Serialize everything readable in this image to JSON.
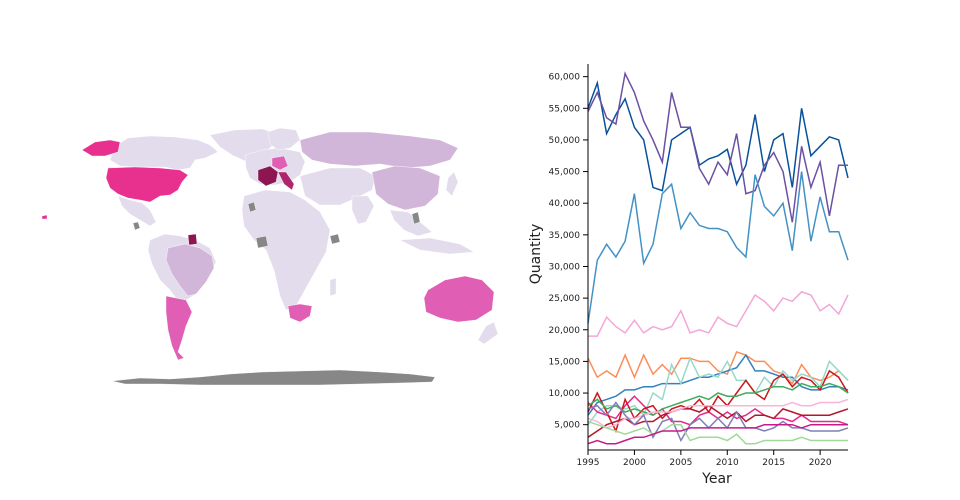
{
  "colors": {
    "map_light": "#e3dcec",
    "map_mid": "#d2b6da",
    "map_pink": "#e05fb4",
    "map_hot": "#e8308f",
    "map_dark": "#b0246c",
    "map_deep": "#8c1552",
    "map_nodata": "#878787"
  },
  "chart_data": {
    "type": "line",
    "title": "",
    "xlabel": "Year",
    "ylabel": "Quantity",
    "xlim": [
      1995,
      2023
    ],
    "ylim": [
      1000,
      62000
    ],
    "x_ticks": [
      1995,
      2000,
      2005,
      2010,
      2015,
      2020
    ],
    "x_tick_labels": [
      "1995",
      "2000",
      "2005",
      "2010",
      "2015",
      "2020"
    ],
    "y_ticks": [
      5000,
      10000,
      15000,
      20000,
      25000,
      30000,
      35000,
      40000,
      45000,
      50000,
      55000,
      60000
    ],
    "y_tick_labels": [
      "5,000",
      "10,000",
      "15,000",
      "20,000",
      "25,000",
      "30,000",
      "35,000",
      "40,000",
      "45,000",
      "50,000",
      "55,000",
      "60,000"
    ],
    "x": [
      1995,
      1996,
      1997,
      1998,
      1999,
      2000,
      2001,
      2002,
      2003,
      2004,
      2005,
      2006,
      2007,
      2008,
      2009,
      2010,
      2011,
      2012,
      2013,
      2014,
      2015,
      2016,
      2017,
      2018,
      2019,
      2020,
      2021,
      2022,
      2023
    ],
    "series": [
      {
        "color": "#08519c",
        "values": [
          55000,
          59000,
          51000,
          54000,
          56500,
          52000,
          50000,
          42500,
          42000,
          50000,
          51000,
          52000,
          46000,
          47000,
          47500,
          48500,
          43000,
          46000,
          54000,
          45000,
          50000,
          51000,
          42500,
          55000,
          47500,
          49000,
          50500,
          50000,
          44000
        ]
      },
      {
        "color": "#6a51a3",
        "values": [
          54500,
          57500,
          53500,
          52500,
          60500,
          57500,
          53000,
          50000,
          46500,
          57500,
          52000,
          52000,
          45500,
          43000,
          46500,
          44500,
          51000,
          41500,
          42000,
          46000,
          48000,
          45000,
          37000,
          49000,
          42500,
          46500,
          38000,
          46000,
          46000
        ]
      },
      {
        "color": "#4292c6",
        "values": [
          21000,
          31000,
          33500,
          31500,
          34000,
          41500,
          30500,
          33500,
          41500,
          43000,
          36000,
          38500,
          36500,
          36000,
          36000,
          35500,
          33000,
          31500,
          44500,
          39500,
          38000,
          40000,
          32500,
          45000,
          34000,
          41000,
          35500,
          35500,
          31000
        ]
      },
      {
        "color": "#f4a6d7",
        "values": [
          19000,
          19000,
          22000,
          20500,
          19500,
          21500,
          19500,
          20500,
          20000,
          20500,
          23000,
          19500,
          20000,
          19500,
          22000,
          21000,
          20500,
          23000,
          25500,
          24500,
          23000,
          25000,
          24500,
          26000,
          25500,
          23000,
          24000,
          22500,
          25500
        ]
      },
      {
        "color": "#fc8d59",
        "values": [
          15500,
          12500,
          13500,
          12500,
          16000,
          12500,
          16000,
          13000,
          14500,
          13000,
          15500,
          15500,
          15000,
          15000,
          13500,
          13000,
          16500,
          16000,
          15000,
          15000,
          13500,
          13000,
          11500,
          14500,
          12500,
          12000,
          12500,
          13500,
          12000
        ]
      },
      {
        "color": "#3182bd",
        "values": [
          6500,
          8500,
          9000,
          9500,
          10500,
          10500,
          11000,
          11000,
          11500,
          11500,
          11500,
          12000,
          12500,
          12500,
          13000,
          13500,
          14000,
          16000,
          13500,
          13500,
          13000,
          12500,
          12500,
          11000,
          10500,
          10500,
          11000,
          11000,
          10500
        ]
      },
      {
        "color": "#99d8c9",
        "values": [
          5000,
          7000,
          8000,
          8000,
          7500,
          8000,
          6500,
          10000,
          9000,
          14500,
          11500,
          15500,
          12500,
          13000,
          12500,
          15000,
          12000,
          12000,
          10000,
          12500,
          11000,
          13500,
          12000,
          13000,
          12500,
          11000,
          15000,
          13500,
          12000
        ]
      },
      {
        "color": "#e7298a",
        "values": [
          8500,
          7000,
          6500,
          6000,
          8000,
          9500,
          8000,
          6500,
          7500,
          5500,
          5500,
          5000,
          6500,
          7000,
          6000,
          7000,
          6000,
          6500,
          7500,
          6500,
          6000,
          6000,
          5500,
          6500,
          5500,
          5500,
          5500,
          5500,
          5000
        ]
      },
      {
        "color": "#cb181d",
        "values": [
          7000,
          10000,
          7000,
          4000,
          9000,
          6000,
          7500,
          8000,
          6000,
          7500,
          8000,
          7500,
          9000,
          7000,
          9500,
          8000,
          10000,
          12000,
          10000,
          9000,
          12000,
          13000,
          11000,
          12500,
          12000,
          10500,
          13500,
          12500,
          10000
        ]
      },
      {
        "color": "#41ab5d",
        "values": [
          8000,
          9000,
          7500,
          8000,
          7000,
          7500,
          7000,
          6500,
          7500,
          8000,
          8500,
          9000,
          9500,
          9000,
          10000,
          9500,
          9500,
          10000,
          10000,
          10500,
          11000,
          11000,
          10500,
          11500,
          11000,
          11000,
          11500,
          11000,
          10000
        ]
      },
      {
        "color": "#b2182b",
        "values": [
          3000,
          4000,
          5000,
          5500,
          6000,
          5000,
          5500,
          5500,
          6500,
          7000,
          7500,
          7500,
          7000,
          8000,
          7000,
          6000,
          7000,
          5500,
          6500,
          6500,
          6000,
          7500,
          7000,
          6500,
          6500,
          6500,
          6500,
          7000,
          7500
        ]
      },
      {
        "color": "#fbb4d9",
        "values": [
          6000,
          5500,
          4500,
          5000,
          6000,
          6000,
          6500,
          7000,
          7000,
          7000,
          7500,
          8000,
          8000,
          8000,
          8000,
          8000,
          8000,
          8000,
          8000,
          8000,
          8000,
          8000,
          8500,
          8000,
          8000,
          8500,
          8500,
          8500,
          9000
        ]
      },
      {
        "color": "#807dba",
        "values": [
          7500,
          8000,
          6500,
          8500,
          6500,
          5000,
          6500,
          3000,
          5500,
          6000,
          2500,
          5000,
          6000,
          4500,
          6000,
          4500,
          7000,
          4500,
          4500,
          4000,
          4500,
          5500,
          4500,
          4500,
          4000,
          4000,
          4000,
          4000,
          4500
        ]
      },
      {
        "color": "#a1d99b",
        "values": [
          5500,
          5000,
          4500,
          4000,
          3500,
          4000,
          4500,
          3500,
          4000,
          5000,
          5000,
          2500,
          3000,
          3000,
          3000,
          2500,
          3500,
          2000,
          2000,
          2500,
          2500,
          2500,
          2500,
          3000,
          2500,
          2500,
          2500,
          2500,
          2500
        ]
      },
      {
        "color": "#c51b8a",
        "values": [
          2000,
          2500,
          2000,
          2000,
          2500,
          3000,
          3000,
          3500,
          4000,
          4000,
          4000,
          4500,
          4500,
          4500,
          4500,
          4500,
          4500,
          4500,
          4500,
          5000,
          5000,
          5000,
          5000,
          4500,
          5000,
          5000,
          5000,
          5000,
          5000
        ]
      }
    ]
  }
}
